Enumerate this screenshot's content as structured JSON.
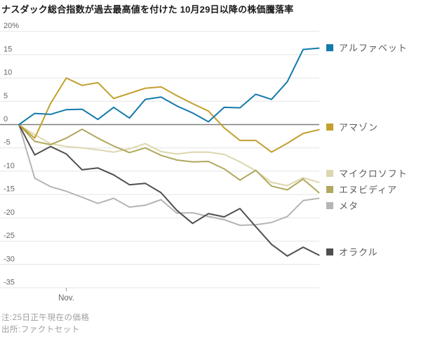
{
  "title": "ナスダック総合指数が過去最高値を付けた 10月29日以降の株価騰落率",
  "notes": {
    "note": "注:25日正午現在の価格",
    "source": "出所:ファクトセット"
  },
  "chart_data": {
    "type": "line",
    "title": "ナスダック総合指数が過去最高値を付けた 10月29日以降の株価騰落率",
    "unit": "%",
    "x_axis": {
      "tick_label": "Nov.",
      "tick_point_index": 3
    },
    "y_axis": {
      "ticks": [
        20,
        15,
        10,
        5,
        0,
        -5,
        -10,
        -15,
        -20,
        -25,
        -30,
        -35
      ],
      "tick_labels": [
        "20%",
        "15",
        "10",
        "5",
        "0",
        "-5",
        "-10",
        "-15",
        "-20",
        "-25",
        "-30",
        "-35"
      ],
      "range": [
        -35,
        20
      ],
      "zero_line": true,
      "grid": true
    },
    "series": [
      {
        "key": "microsoft",
        "name": "マイクロソフト",
        "color": "#ddd6ae",
        "values": [
          0,
          -2.2,
          -4.1,
          -4.7,
          -5.0,
          -5.4,
          -5.9,
          -5.2,
          -4.1,
          -5.8,
          -6.3,
          -5.9,
          -5.9,
          -6.4,
          -8.0,
          -9.9,
          -12.4,
          -13.1,
          -11.4,
          -12.4
        ]
      },
      {
        "key": "meta",
        "name": "メタ",
        "color": "#b5b5b5",
        "values": [
          0,
          -11.5,
          -13.3,
          -14.3,
          -15.6,
          -16.9,
          -15.8,
          -17.7,
          -17.3,
          -16.1,
          -19.0,
          -18.9,
          -19.7,
          -20.4,
          -21.6,
          -21.5,
          -21.0,
          -19.7,
          -16.3,
          -15.8
        ]
      },
      {
        "key": "nvidia",
        "name": "エヌビディア",
        "color": "#b0a85e",
        "values": [
          0,
          -3.6,
          -4.3,
          -2.9,
          -1.0,
          -2.9,
          -4.6,
          -6.0,
          -5.0,
          -6.6,
          -7.6,
          -8.0,
          -7.9,
          -9.5,
          -11.9,
          -9.8,
          -13.2,
          -14.0,
          -11.7,
          -14.6
        ]
      },
      {
        "key": "oracle",
        "name": "オラクル",
        "color": "#4f4f4f",
        "values": [
          0,
          -6.5,
          -4.7,
          -6.3,
          -9.7,
          -9.3,
          -10.8,
          -12.9,
          -12.6,
          -14.6,
          -18.4,
          -21.2,
          -19.1,
          -19.8,
          -18.0,
          -21.9,
          -25.7,
          -28.2,
          -26.3,
          -28.0
        ]
      },
      {
        "key": "amazon",
        "name": "アマゾン",
        "color": "#c2a02d",
        "values": [
          0,
          -2.9,
          4.5,
          10.0,
          8.4,
          9.0,
          5.6,
          6.7,
          7.8,
          8.1,
          6.2,
          4.5,
          2.9,
          -0.7,
          -3.4,
          -3.4,
          -5.9,
          -4.0,
          -1.9,
          -1.1
        ]
      },
      {
        "key": "alphabet",
        "name": "アルファベット",
        "color": "#147bab",
        "values": [
          0,
          2.4,
          2.2,
          3.2,
          3.3,
          1.1,
          3.7,
          1.4,
          5.4,
          5.9,
          4.0,
          2.5,
          0.6,
          3.7,
          3.6,
          6.5,
          5.4,
          9.2,
          16.1,
          16.4
        ]
      }
    ],
    "legend": [
      {
        "key": "alphabet",
        "label": "アルファベット"
      },
      {
        "key": "amazon",
        "label": "アマゾン"
      },
      {
        "key": "microsoft",
        "label": "マイクロソフト"
      },
      {
        "key": "nvidia",
        "label": "エヌビディア"
      },
      {
        "key": "meta",
        "label": "メタ"
      },
      {
        "key": "oracle",
        "label": "オラクル"
      }
    ],
    "legend_position": "right"
  }
}
